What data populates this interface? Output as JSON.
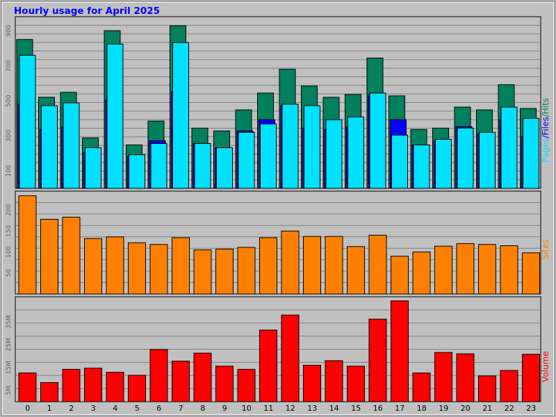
{
  "title": "Hourly usage for April 2025",
  "colors": {
    "background": "#c0c0c0",
    "title": "#0000ff",
    "hits": "#00805c",
    "files": "#0000ff",
    "pages": "#00e0ff",
    "sites": "#ff8000",
    "volume": "#ff0000",
    "grid": "#808080",
    "axis_text": "#000000"
  },
  "chart_data": [
    {
      "type": "bar",
      "title": "Hourly usage for April 2025",
      "categories": [
        "0",
        "1",
        "2",
        "3",
        "4",
        "5",
        "6",
        "7",
        "8",
        "9",
        "10",
        "11",
        "12",
        "13",
        "14",
        "15",
        "16",
        "17",
        "18",
        "19",
        "20",
        "21",
        "22",
        "23"
      ],
      "ylabel_parts": [
        "Pages",
        "Files",
        "Hits"
      ],
      "ytick_labels": [
        "100",
        "300",
        "500",
        "700",
        "900"
      ],
      "yticks": [
        100,
        300,
        500,
        700,
        900
      ],
      "ylim": [
        0,
        980
      ],
      "grid": true,
      "series": [
        {
          "name": "Hits",
          "color_key": "hits",
          "values": [
            850,
            520,
            548,
            288,
            900,
            248,
            384,
            928,
            344,
            328,
            448,
            544,
            680,
            584,
            520,
            536,
            744,
            528,
            336,
            344,
            464,
            448,
            592,
            456
          ]
        },
        {
          "name": "Files",
          "color_key": "files",
          "values": [
            480,
            336,
            352,
            208,
            504,
            184,
            272,
            552,
            256,
            232,
            328,
            392,
            472,
            344,
            336,
            352,
            536,
            392,
            248,
            272,
            352,
            312,
            392,
            296
          ]
        },
        {
          "name": "Pages",
          "color_key": "pages",
          "values": [
            760,
            472,
            488,
            232,
            824,
            192,
            256,
            832,
            256,
            232,
            320,
            368,
            480,
            472,
            392,
            408,
            544,
            304,
            248,
            280,
            344,
            320,
            464,
            400
          ]
        }
      ]
    },
    {
      "type": "bar",
      "categories": [
        "0",
        "1",
        "2",
        "3",
        "4",
        "5",
        "6",
        "7",
        "8",
        "9",
        "10",
        "11",
        "12",
        "13",
        "14",
        "15",
        "16",
        "17",
        "18",
        "19",
        "20",
        "21",
        "22",
        "23"
      ],
      "ylabel": "Sites",
      "ytick_labels": [
        "50",
        "100",
        "150",
        "200"
      ],
      "yticks": [
        50,
        100,
        150,
        200
      ],
      "ylim": [
        0,
        245
      ],
      "grid": true,
      "series": [
        {
          "name": "Sites",
          "color_key": "sites",
          "values": [
            234,
            178,
            183,
            132,
            136,
            122,
            118,
            134,
            105,
            107,
            111,
            134,
            150,
            137,
            137,
            113,
            140,
            90,
            100,
            114,
            120,
            118,
            115,
            98
          ]
        }
      ]
    },
    {
      "type": "bar",
      "categories": [
        "0",
        "1",
        "2",
        "3",
        "4",
        "5",
        "6",
        "7",
        "8",
        "9",
        "10",
        "11",
        "12",
        "13",
        "14",
        "15",
        "16",
        "17",
        "18",
        "19",
        "20",
        "21",
        "22",
        "23"
      ],
      "ylabel": "Volume",
      "ytick_labels": [
        "5M",
        "15M",
        "25M",
        "35M"
      ],
      "yticks": [
        5,
        15,
        25,
        35
      ],
      "ylim": [
        0,
        46
      ],
      "grid": true,
      "series": [
        {
          "name": "Volume",
          "color_key": "volume",
          "values": [
            12.6,
            8.4,
            14.2,
            14.7,
            12.9,
            11.6,
            22.9,
            17.8,
            21.3,
            15.6,
            14.2,
            31.4,
            38.0,
            16.0,
            18.0,
            15.6,
            36.2,
            44.2,
            12.6,
            21.6,
            21.0,
            11.3,
            13.7,
            20.8
          ]
        }
      ]
    }
  ]
}
